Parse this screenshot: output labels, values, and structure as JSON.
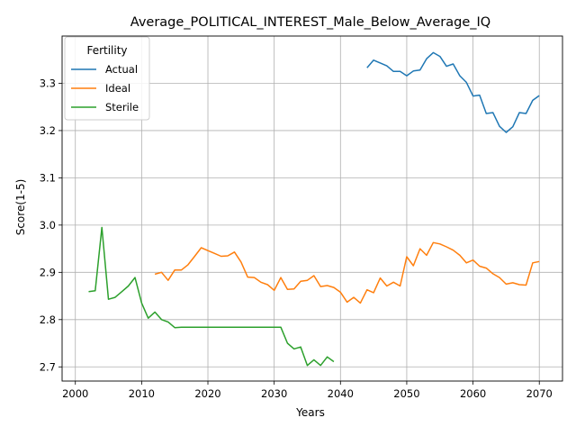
{
  "chart_data": {
    "type": "line",
    "title": "Average_POLITICAL_INTEREST_Male_Below_Average_IQ",
    "xlabel": "Years",
    "ylabel": "Score(1-5)",
    "xlim": [
      1998,
      2073.5
    ],
    "ylim": [
      2.67,
      3.4
    ],
    "x_ticks": [
      2000,
      2010,
      2020,
      2030,
      2040,
      2050,
      2060,
      2070
    ],
    "y_ticks": [
      2.7,
      2.8,
      2.9,
      3.0,
      3.1,
      3.2,
      3.3
    ],
    "grid": true,
    "legend": {
      "title": "Fertility",
      "position": "top-left"
    },
    "series": [
      {
        "name": "Actual",
        "color": "#1f77b4",
        "x": [
          2044,
          2045,
          2046,
          2047,
          2048,
          2049,
          2050,
          2051,
          2052,
          2053,
          2054,
          2055,
          2056,
          2057,
          2058,
          2059,
          2060,
          2061,
          2062,
          2063,
          2064,
          2065,
          2066,
          2067,
          2068,
          2069,
          2070
        ],
        "values": [
          3.333,
          3.349,
          3.343,
          3.337,
          3.325,
          3.325,
          3.316,
          3.326,
          3.328,
          3.352,
          3.365,
          3.357,
          3.336,
          3.341,
          3.316,
          3.302,
          3.273,
          3.275,
          3.236,
          3.238,
          3.209,
          3.196,
          3.208,
          3.238,
          3.236,
          3.264,
          3.274
        ]
      },
      {
        "name": "Ideal",
        "color": "#ff7f0e",
        "x": [
          2012,
          2013,
          2014,
          2015,
          2016,
          2017,
          2018,
          2019,
          2020,
          2021,
          2022,
          2023,
          2024,
          2025,
          2026,
          2027,
          2028,
          2029,
          2030,
          2031,
          2032,
          2033,
          2034,
          2035,
          2036,
          2037,
          2038,
          2039,
          2040,
          2041,
          2042,
          2043,
          2044,
          2045,
          2046,
          2047,
          2048,
          2049,
          2050,
          2051,
          2052,
          2053,
          2054,
          2055,
          2056,
          2057,
          2058,
          2059,
          2060,
          2061,
          2062,
          2063,
          2064,
          2065,
          2066,
          2067,
          2068,
          2069,
          2070
        ],
        "values": [
          2.896,
          2.9,
          2.883,
          2.905,
          2.905,
          2.916,
          2.934,
          2.952,
          2.946,
          2.94,
          2.934,
          2.935,
          2.943,
          2.922,
          2.89,
          2.889,
          2.879,
          2.874,
          2.862,
          2.889,
          2.864,
          2.865,
          2.881,
          2.883,
          2.893,
          2.87,
          2.872,
          2.868,
          2.858,
          2.837,
          2.847,
          2.835,
          2.863,
          2.857,
          2.888,
          2.871,
          2.879,
          2.871,
          2.933,
          2.914,
          2.95,
          2.936,
          2.963,
          2.96,
          2.954,
          2.947,
          2.936,
          2.92,
          2.926,
          2.913,
          2.909,
          2.897,
          2.889,
          2.875,
          2.878,
          2.874,
          2.873,
          2.92,
          2.923
        ]
      },
      {
        "name": "Sterile",
        "color": "#2ca02c",
        "x": [
          2002,
          2003,
          2004,
          2005,
          2006,
          2007,
          2008,
          2009,
          2010,
          2011,
          2012,
          2013,
          2014,
          2015,
          2016,
          2017,
          2018,
          2019,
          2020,
          2021,
          2022,
          2023,
          2024,
          2025,
          2026,
          2027,
          2028,
          2029,
          2030,
          2031,
          2032,
          2033,
          2034,
          2035,
          2036,
          2037,
          2038,
          2039
        ],
        "values": [
          2.859,
          2.861,
          2.995,
          2.843,
          2.847,
          2.859,
          2.871,
          2.889,
          2.835,
          2.803,
          2.816,
          2.8,
          2.795,
          2.783,
          2.784,
          2.784,
          2.784,
          2.784,
          2.784,
          2.784,
          2.784,
          2.784,
          2.784,
          2.784,
          2.784,
          2.784,
          2.784,
          2.784,
          2.784,
          2.784,
          2.75,
          2.738,
          2.742,
          2.703,
          2.715,
          2.703,
          2.721,
          2.711
        ]
      }
    ]
  }
}
